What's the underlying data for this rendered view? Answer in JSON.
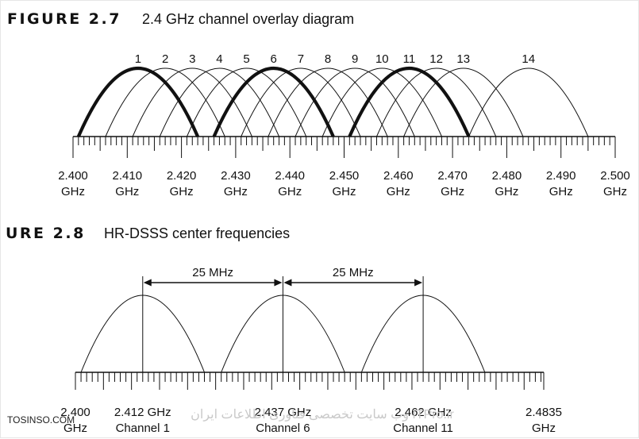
{
  "figure_2_7": {
    "label": "FIGURE 2.7",
    "title": "2.4 GHz channel overlay diagram",
    "channels": [
      {
        "number": "1",
        "center_ghz": 2.412,
        "bold": true
      },
      {
        "number": "2",
        "center_ghz": 2.417,
        "bold": false
      },
      {
        "number": "3",
        "center_ghz": 2.422,
        "bold": false
      },
      {
        "number": "4",
        "center_ghz": 2.427,
        "bold": false
      },
      {
        "number": "5",
        "center_ghz": 2.432,
        "bold": false
      },
      {
        "number": "6",
        "center_ghz": 2.437,
        "bold": true
      },
      {
        "number": "7",
        "center_ghz": 2.442,
        "bold": false
      },
      {
        "number": "8",
        "center_ghz": 2.447,
        "bold": false
      },
      {
        "number": "9",
        "center_ghz": 2.452,
        "bold": false
      },
      {
        "number": "10",
        "center_ghz": 2.457,
        "bold": false
      },
      {
        "number": "11",
        "center_ghz": 2.462,
        "bold": true
      },
      {
        "number": "12",
        "center_ghz": 2.467,
        "bold": false
      },
      {
        "number": "13",
        "center_ghz": 2.472,
        "bold": false
      },
      {
        "number": "14",
        "center_ghz": 2.484,
        "bold": false
      }
    ],
    "channel_width_ghz": 0.022,
    "axis": {
      "min_ghz": 2.4,
      "max_ghz": 2.5,
      "minor_step_ghz": 0.001,
      "major_step_ghz": 0.01
    },
    "tick_labels": [
      {
        "value": 2.4,
        "text": "2.400",
        "unit": "GHz"
      },
      {
        "value": 2.41,
        "text": "2.410",
        "unit": "GHz"
      },
      {
        "value": 2.42,
        "text": "2.420",
        "unit": "GHz"
      },
      {
        "value": 2.43,
        "text": "2.430",
        "unit": "GHz"
      },
      {
        "value": 2.44,
        "text": "2.440",
        "unit": "GHz"
      },
      {
        "value": 2.45,
        "text": "2.450",
        "unit": "GHz"
      },
      {
        "value": 2.46,
        "text": "2.460",
        "unit": "GHz"
      },
      {
        "value": 2.47,
        "text": "2.470",
        "unit": "GHz"
      },
      {
        "value": 2.48,
        "text": "2.480",
        "unit": "GHz"
      },
      {
        "value": 2.49,
        "text": "2.490",
        "unit": "GHz"
      },
      {
        "value": 2.5,
        "text": "2.500",
        "unit": "GHz"
      }
    ]
  },
  "figure_2_8": {
    "label": "URE 2.8",
    "title": "HR-DSSS center frequencies",
    "channels": [
      {
        "center_ghz": 2.412,
        "freq_text": "2.412 GHz",
        "name": "Channel 1"
      },
      {
        "center_ghz": 2.437,
        "freq_text": "2.437 GHz",
        "name": "Channel 6"
      },
      {
        "center_ghz": 2.462,
        "freq_text": "2.462 GHz",
        "name": "Channel 11"
      }
    ],
    "channel_width_ghz": 0.022,
    "spacing_labels": [
      "25 MHz",
      "25 MHz"
    ],
    "axis": {
      "min_ghz": 2.4,
      "max_ghz": 2.4835,
      "minor_step_ghz": 0.001,
      "major_step_ghz": 0.005
    },
    "end_labels": [
      {
        "value": 2.4,
        "text": "2.400",
        "unit": "GHz"
      },
      {
        "value": 2.4835,
        "text": "2.4835",
        "unit": "GHz"
      }
    ]
  },
  "watermarks": {
    "left": "TOSINSO.COM",
    "center": "وب سایت تخصصی فناوری اطلاعات ایران ITPro.ir"
  },
  "colors": {
    "ink": "#111111",
    "watermark": "#c9c9c9"
  }
}
